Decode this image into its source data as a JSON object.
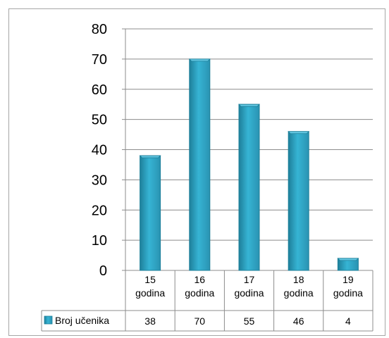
{
  "chart_data": {
    "type": "bar",
    "title": "",
    "xlabel": "",
    "ylabel": "",
    "categories": [
      [
        "15",
        "godina"
      ],
      [
        "16",
        "godina"
      ],
      [
        "17",
        "godina"
      ],
      [
        "18",
        "godina"
      ],
      [
        "19",
        "godina"
      ]
    ],
    "series": [
      {
        "name": "Broj učenika",
        "values": [
          38,
          70,
          55,
          46,
          4
        ]
      }
    ],
    "ylim": [
      0,
      80
    ],
    "yticks": [
      0,
      10,
      20,
      30,
      40,
      50,
      60,
      70,
      80
    ],
    "grid": true,
    "legend": "data-table-left",
    "bar_color": "#31a9c9",
    "bar_edge_color": "#1d7f99",
    "bar_top_color": "#62c7e2"
  }
}
